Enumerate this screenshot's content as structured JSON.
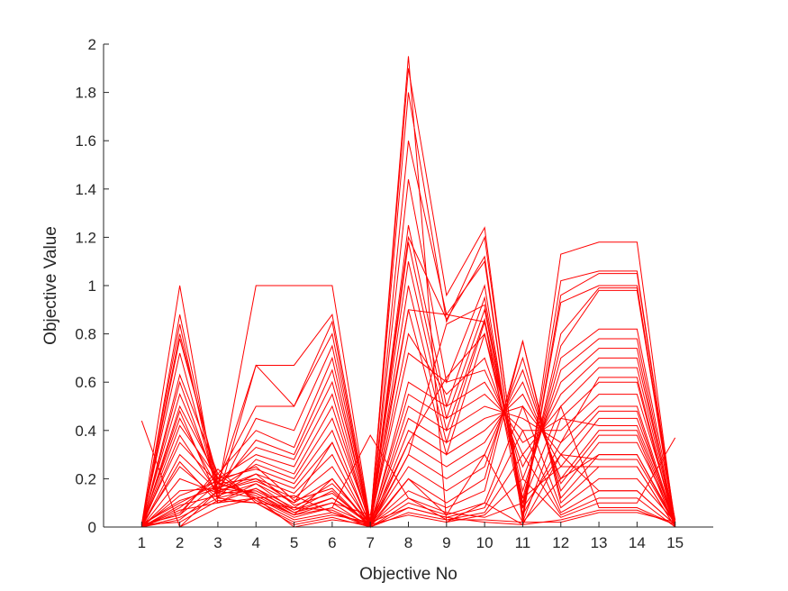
{
  "chart_data": {
    "type": "line",
    "title": "",
    "xlabel": "Objective No",
    "ylabel": "Objective Value",
    "x": [
      1,
      2,
      3,
      4,
      5,
      6,
      7,
      8,
      9,
      10,
      11,
      12,
      13,
      14,
      15
    ],
    "x_ticks": [
      "1",
      "2",
      "3",
      "4",
      "5",
      "6",
      "7",
      "8",
      "9",
      "10",
      "11",
      "12",
      "13",
      "14",
      "15"
    ],
    "y_ticks": [
      "0",
      "0.2",
      "0.4",
      "0.6",
      "0.8",
      "1",
      "1.2",
      "1.4",
      "1.6",
      "1.8",
      "2"
    ],
    "xlim": [
      0,
      16
    ],
    "ylim": [
      0,
      2
    ],
    "grid": false,
    "line_color": "#ff0000",
    "axis_color": "#262626",
    "series": [
      {
        "values": [
          0.44,
          0.0,
          0.15,
          0.2,
          0.1,
          0.35,
          0.01,
          0.2,
          0.05,
          0.3,
          0.02,
          0.2,
          0.3,
          0.3,
          0.02
        ]
      },
      {
        "values": [
          0.01,
          1.0,
          0.1,
          0.12,
          0.05,
          0.2,
          0.01,
          1.95,
          0.02,
          0.1,
          0.01,
          0.3,
          0.15,
          0.15,
          0.01
        ]
      },
      {
        "values": [
          0.0,
          0.88,
          0.15,
          1.0,
          1.0,
          1.0,
          0.02,
          1.9,
          0.96,
          1.24,
          0.02,
          1.13,
          1.18,
          1.18,
          0.0
        ]
      },
      {
        "values": [
          0.01,
          0.84,
          0.12,
          0.67,
          0.67,
          0.88,
          0.02,
          1.8,
          0.85,
          1.2,
          0.05,
          1.02,
          1.06,
          1.06,
          0.02
        ]
      },
      {
        "values": [
          0.0,
          0.8,
          0.18,
          0.67,
          0.5,
          0.85,
          0.0,
          1.6,
          0.88,
          1.1,
          0.03,
          0.96,
          1.05,
          1.05,
          0.01
        ]
      },
      {
        "values": [
          0.0,
          0.78,
          0.2,
          0.5,
          0.5,
          0.8,
          0.01,
          1.44,
          0.6,
          1.0,
          0.04,
          0.93,
          1.0,
          1.0,
          0.0
        ]
      },
      {
        "values": [
          0.01,
          0.72,
          0.14,
          0.45,
          0.4,
          0.75,
          0.01,
          1.25,
          0.5,
          0.95,
          0.08,
          0.8,
          0.99,
          0.99,
          0.02
        ]
      },
      {
        "values": [
          0.0,
          0.63,
          0.22,
          0.4,
          0.33,
          0.7,
          0.0,
          1.18,
          0.45,
          0.9,
          0.1,
          0.75,
          0.98,
          0.98,
          0.0
        ]
      },
      {
        "values": [
          0.0,
          0.6,
          0.16,
          0.36,
          0.3,
          0.65,
          0.02,
          1.1,
          0.4,
          0.86,
          0.12,
          0.7,
          0.82,
          0.82,
          0.03
        ]
      },
      {
        "values": [
          0.01,
          0.55,
          0.18,
          0.33,
          0.28,
          0.6,
          0.01,
          1.0,
          0.35,
          0.85,
          0.15,
          0.65,
          0.78,
          0.78,
          0.01
        ]
      },
      {
        "values": [
          0.0,
          0.5,
          0.2,
          0.3,
          0.25,
          0.55,
          0.0,
          0.9,
          0.3,
          0.8,
          0.2,
          0.6,
          0.74,
          0.74,
          0.0
        ]
      },
      {
        "values": [
          0.0,
          0.48,
          0.12,
          0.28,
          0.22,
          0.5,
          0.01,
          0.8,
          0.55,
          0.7,
          0.25,
          0.55,
          0.7,
          0.7,
          0.02
        ]
      },
      {
        "values": [
          0.01,
          0.45,
          0.16,
          0.26,
          0.2,
          0.45,
          0.02,
          0.72,
          0.6,
          0.65,
          0.3,
          0.5,
          0.66,
          0.66,
          0.01
        ]
      },
      {
        "values": [
          0.0,
          0.42,
          0.2,
          0.24,
          0.18,
          0.4,
          0.0,
          0.6,
          0.5,
          0.6,
          0.35,
          0.45,
          0.6,
          0.6,
          0.0
        ]
      },
      {
        "values": [
          0.0,
          0.38,
          0.14,
          0.22,
          0.16,
          0.35,
          0.01,
          0.55,
          0.45,
          0.55,
          0.4,
          0.4,
          0.55,
          0.55,
          0.03
        ]
      },
      {
        "values": [
          0.01,
          0.35,
          0.18,
          0.2,
          0.14,
          0.3,
          0.0,
          0.5,
          0.4,
          0.5,
          0.45,
          0.35,
          0.5,
          0.5,
          0.01
        ]
      },
      {
        "values": [
          0.0,
          0.3,
          0.15,
          0.19,
          0.12,
          0.25,
          0.01,
          0.45,
          0.35,
          0.45,
          0.5,
          0.3,
          0.48,
          0.48,
          0.0
        ]
      },
      {
        "values": [
          0.0,
          0.27,
          0.1,
          0.18,
          0.1,
          0.2,
          0.0,
          0.4,
          0.3,
          0.4,
          0.55,
          0.25,
          0.45,
          0.45,
          0.02
        ]
      },
      {
        "values": [
          0.01,
          0.25,
          0.12,
          0.16,
          0.08,
          0.18,
          0.02,
          0.35,
          0.25,
          0.35,
          0.6,
          0.2,
          0.4,
          0.4,
          0.01
        ]
      },
      {
        "values": [
          0.0,
          0.2,
          0.14,
          0.15,
          0.07,
          0.15,
          0.0,
          0.3,
          0.2,
          0.3,
          0.65,
          0.18,
          0.38,
          0.38,
          0.0
        ]
      },
      {
        "values": [
          0.0,
          0.15,
          0.16,
          0.14,
          0.06,
          0.12,
          0.01,
          0.25,
          0.15,
          0.25,
          0.7,
          0.15,
          0.35,
          0.35,
          0.03
        ]
      },
      {
        "values": [
          0.01,
          0.1,
          0.18,
          0.13,
          0.05,
          0.1,
          0.0,
          0.2,
          0.1,
          0.2,
          0.77,
          0.12,
          0.3,
          0.3,
          0.01
        ]
      },
      {
        "values": [
          0.0,
          0.08,
          0.2,
          0.12,
          0.04,
          0.08,
          0.01,
          0.15,
          0.08,
          0.15,
          0.77,
          0.1,
          0.25,
          0.25,
          0.0
        ]
      },
      {
        "values": [
          0.0,
          0.06,
          0.22,
          0.11,
          0.03,
          0.06,
          0.0,
          0.1,
          0.05,
          0.1,
          0.5,
          0.08,
          0.2,
          0.2,
          0.02
        ]
      },
      {
        "values": [
          0.01,
          0.05,
          0.24,
          0.1,
          0.02,
          0.05,
          0.02,
          0.08,
          0.04,
          0.08,
          0.4,
          0.06,
          0.15,
          0.15,
          0.01
        ]
      },
      {
        "values": [
          0.0,
          0.04,
          0.12,
          0.1,
          0.01,
          0.04,
          0.0,
          0.06,
          0.03,
          0.06,
          0.3,
          0.05,
          0.12,
          0.12,
          0.0
        ]
      },
      {
        "values": [
          0.0,
          0.03,
          0.15,
          0.12,
          0.0,
          0.03,
          0.01,
          0.05,
          0.02,
          0.05,
          0.2,
          0.04,
          0.1,
          0.1,
          0.37
        ]
      },
      {
        "values": [
          0.01,
          0.05,
          0.18,
          0.14,
          0.05,
          0.08,
          0.38,
          0.12,
          0.06,
          0.04,
          0.1,
          0.5,
          0.08,
          0.08,
          0.01
        ]
      },
      {
        "values": [
          0.0,
          0.07,
          0.1,
          0.16,
          0.06,
          0.1,
          0.05,
          0.9,
          0.88,
          0.85,
          0.05,
          0.35,
          0.62,
          0.62,
          0.0
        ]
      },
      {
        "values": [
          0.0,
          0.09,
          0.13,
          0.18,
          0.07,
          0.12,
          0.02,
          1.2,
          0.86,
          1.12,
          0.02,
          0.45,
          0.42,
          0.42,
          0.02
        ]
      },
      {
        "values": [
          0.01,
          0.11,
          0.16,
          0.22,
          0.09,
          0.14,
          0.01,
          0.3,
          0.84,
          0.92,
          0.08,
          0.3,
          0.28,
          0.28,
          0.01
        ]
      },
      {
        "values": [
          0.0,
          0.13,
          0.19,
          0.25,
          0.11,
          0.16,
          0.0,
          0.35,
          0.62,
          0.8,
          0.12,
          0.25,
          0.25,
          0.25,
          0.0
        ]
      },
      {
        "values": [
          0.0,
          0.0,
          0.08,
          0.12,
          0.13,
          0.06,
          0.01,
          0.12,
          0.03,
          0.03,
          0.02,
          0.02,
          0.06,
          0.06,
          0.02
        ]
      },
      {
        "values": [
          0.01,
          0.02,
          0.11,
          0.1,
          0.08,
          0.07,
          0.0,
          0.08,
          0.04,
          0.02,
          0.01,
          0.03,
          0.07,
          0.07,
          0.01
        ]
      }
    ]
  }
}
